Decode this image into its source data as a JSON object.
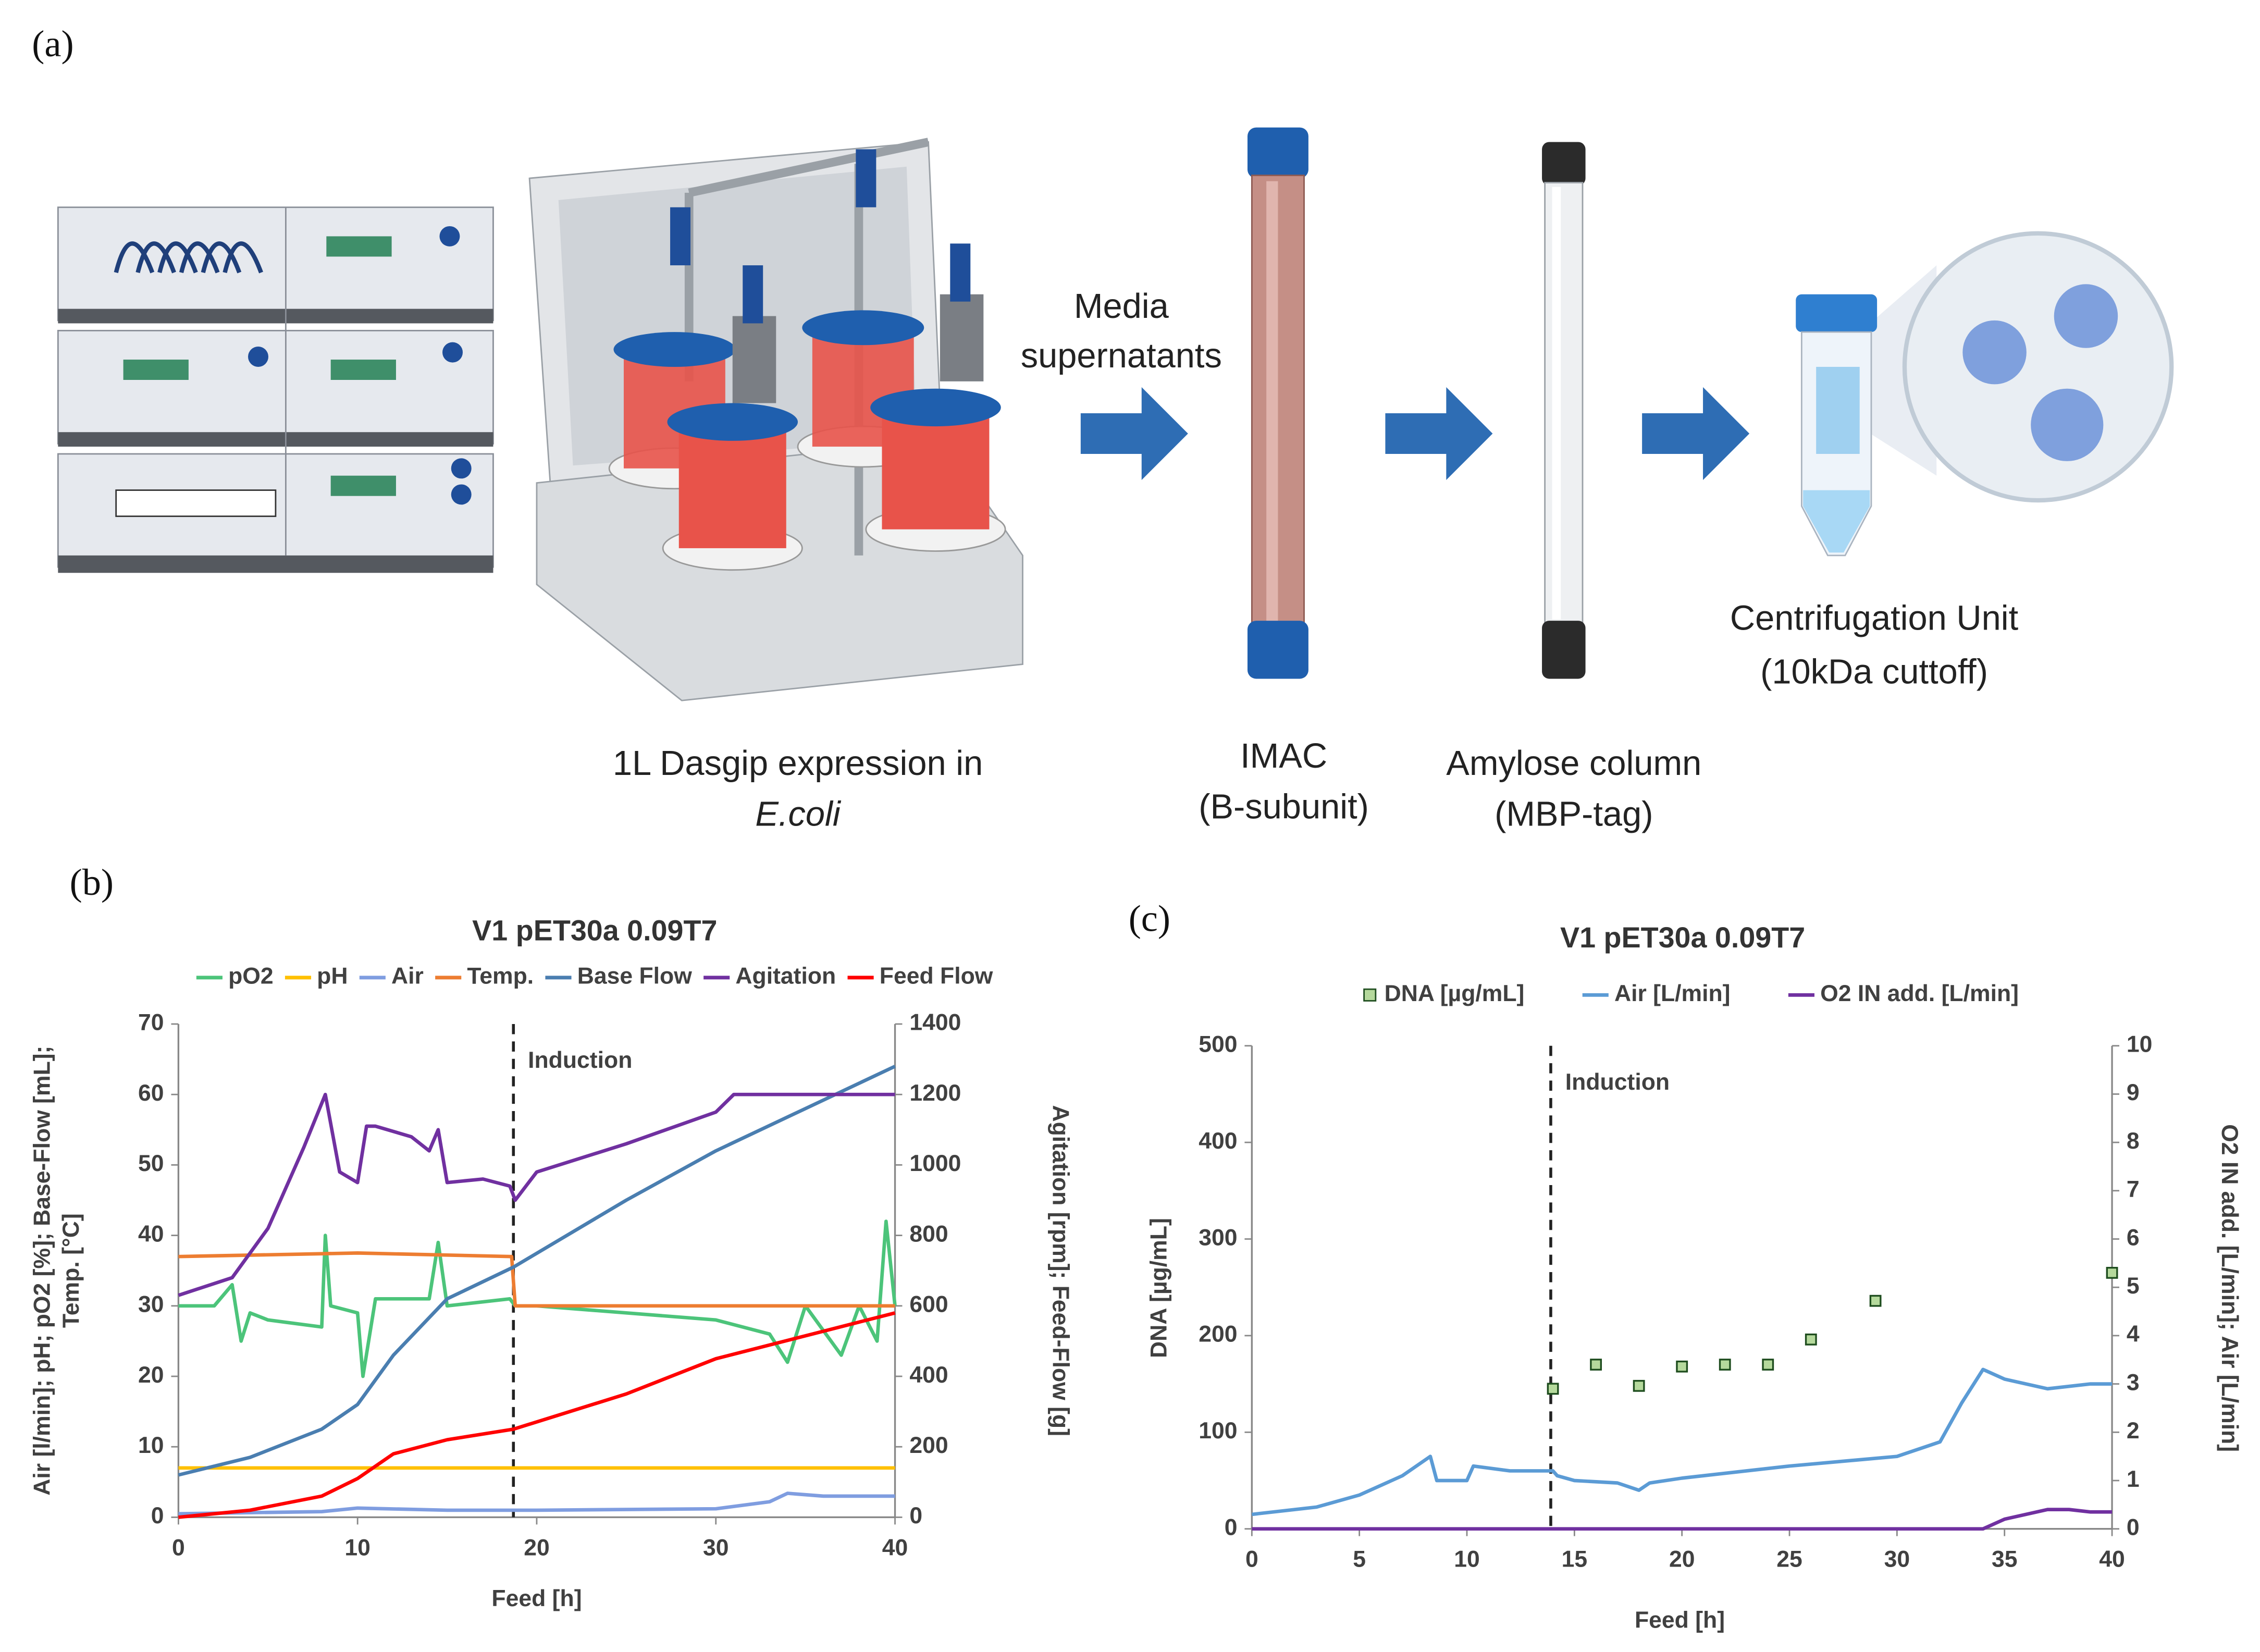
{
  "panels": {
    "a": {
      "label": "(a)",
      "bioreactor": [
        "1L Dasgip expression in",
        "E.coli"
      ],
      "arrow_label": [
        "Media",
        "supernatants"
      ],
      "imac": [
        "IMAC",
        "(B-subunit)"
      ],
      "amylose": [
        "Amylose column",
        "(MBP-tag)"
      ],
      "centrifugation": [
        "Centrifugation Unit",
        "(10kDa cuttoff)"
      ]
    },
    "b": {
      "label": "(b)"
    },
    "c": {
      "label": "(c)"
    }
  },
  "chart_data": [
    {
      "type": "line",
      "title": "V1 pET30a 0.09T7",
      "xlabel": "Feed [h]",
      "ylabel": [
        "Air [l/min]; pH; pO2 [%]; Base-Flow [mL];",
        "Temp. [°C]"
      ],
      "y2label": "Agitation [rpm]; Feed-Flow [g]",
      "xlim": [
        0,
        40
      ],
      "xticks": [
        0,
        10,
        20,
        30,
        40
      ],
      "ylim": [
        0,
        70
      ],
      "yticks": [
        0,
        10,
        20,
        30,
        40,
        50,
        60,
        70
      ],
      "y2lim": [
        0,
        1400
      ],
      "y2ticks": [
        0,
        200,
        400,
        600,
        800,
        1000,
        1200,
        1400
      ],
      "induction": {
        "x": 18.7,
        "label": "Induction"
      },
      "series": [
        {
          "name": "pO2",
          "color": "#4cc47a",
          "x": [
            0,
            2,
            3,
            3.5,
            4,
            5,
            8,
            8.2,
            8.5,
            10,
            10.3,
            11,
            14,
            14.5,
            15,
            18.5,
            18.8,
            20,
            25,
            30,
            33,
            34,
            35,
            37,
            38,
            39,
            39.5,
            40
          ],
          "values": [
            30,
            30,
            33,
            25,
            29,
            28,
            27,
            40,
            30,
            29,
            20,
            31,
            31,
            39,
            30,
            31,
            30,
            30,
            29,
            28,
            26,
            22,
            30,
            23,
            30,
            25,
            42,
            30
          ]
        },
        {
          "name": "pH",
          "color": "#ffc000",
          "x": [
            0,
            40
          ],
          "values": [
            7,
            7
          ]
        },
        {
          "name": "Air",
          "color": "#7f9de0",
          "x": [
            0,
            8,
            10,
            15,
            20,
            30,
            33,
            34,
            36,
            40
          ],
          "values": [
            0.5,
            0.8,
            1.3,
            1.0,
            1.0,
            1.2,
            2.2,
            3.4,
            3,
            3
          ]
        },
        {
          "name": "Temp.",
          "color": "#ed7d31",
          "x": [
            0,
            10,
            18.6,
            18.8,
            40
          ],
          "values": [
            37,
            37.5,
            37,
            30,
            30
          ]
        },
        {
          "name": "Base Flow",
          "color": "#4a7eb0",
          "x": [
            0,
            4,
            8,
            10,
            12,
            15,
            18.7,
            25,
            30,
            35,
            40
          ],
          "values": [
            6,
            8.5,
            12.5,
            16,
            23,
            31,
            35.5,
            45,
            52,
            58,
            64
          ]
        },
        {
          "name": "Agitation",
          "color": "#7030a0",
          "axis": "y2",
          "x": [
            0,
            3,
            5,
            7,
            8.2,
            9,
            10,
            10.5,
            11,
            13,
            14,
            14.5,
            15,
            17,
            18.5,
            18.8,
            20,
            25,
            30,
            31,
            35,
            40
          ],
          "values": [
            630,
            680,
            820,
            1050,
            1200,
            980,
            950,
            1110,
            1110,
            1080,
            1040,
            1100,
            950,
            960,
            940,
            900,
            980,
            1060,
            1150,
            1200,
            1200,
            1200
          ]
        },
        {
          "name": "Feed Flow",
          "color": "#ff0000",
          "axis": "y2",
          "x": [
            0,
            4,
            8,
            10,
            12,
            15,
            18.7,
            25,
            30,
            40
          ],
          "values": [
            0,
            20,
            60,
            110,
            180,
            220,
            250,
            350,
            450,
            580
          ]
        }
      ]
    },
    {
      "type": "combo",
      "title": "V1 pET30a 0.09T7",
      "xlabel": "Feed [h]",
      "ylabel": [
        "DNA [µg/mL]"
      ],
      "y2label": "O2 IN add. [L/min]; Air [L/min]",
      "xlim": [
        0,
        40
      ],
      "xticks": [
        0,
        5,
        10,
        15,
        20,
        25,
        30,
        35,
        40
      ],
      "ylim": [
        0,
        500
      ],
      "yticks": [
        0,
        100,
        200,
        300,
        400,
        500
      ],
      "y2lim": [
        0,
        10
      ],
      "y2ticks": [
        0,
        1,
        2,
        3,
        4,
        5,
        6,
        7,
        8,
        9,
        10
      ],
      "induction": {
        "x": 13.9,
        "label": "Induction"
      },
      "series": [
        {
          "name": "DNA [µg/mL]",
          "type": "scatter",
          "color": "#b5d99c",
          "x": [
            14,
            16,
            18,
            20,
            22,
            24,
            26,
            29,
            40
          ],
          "values": [
            145,
            170,
            148,
            168,
            170,
            170,
            196,
            236,
            265
          ]
        },
        {
          "name": "Air [L/min]",
          "type": "line",
          "color": "#5b9bd5",
          "axis": "y2",
          "x": [
            0,
            3,
            5,
            7,
            8.3,
            8.6,
            10,
            10.3,
            12,
            14,
            14.2,
            15,
            17,
            18,
            18.5,
            20,
            25,
            30,
            32,
            33,
            34,
            35,
            37,
            39,
            40
          ],
          "values": [
            0.3,
            0.45,
            0.7,
            1.1,
            1.5,
            1.0,
            1.0,
            1.3,
            1.2,
            1.2,
            1.1,
            1.0,
            0.95,
            0.8,
            0.95,
            1.05,
            1.3,
            1.5,
            1.8,
            2.6,
            3.3,
            3.1,
            2.9,
            3.0,
            3.0
          ]
        },
        {
          "name": "O2 IN add. [L/min]",
          "type": "line",
          "color": "#7030a0",
          "axis": "y2",
          "x": [
            0,
            34,
            35,
            37,
            38,
            39,
            40
          ],
          "values": [
            0,
            0,
            0.2,
            0.4,
            0.4,
            0.35,
            0.35
          ]
        }
      ]
    }
  ]
}
